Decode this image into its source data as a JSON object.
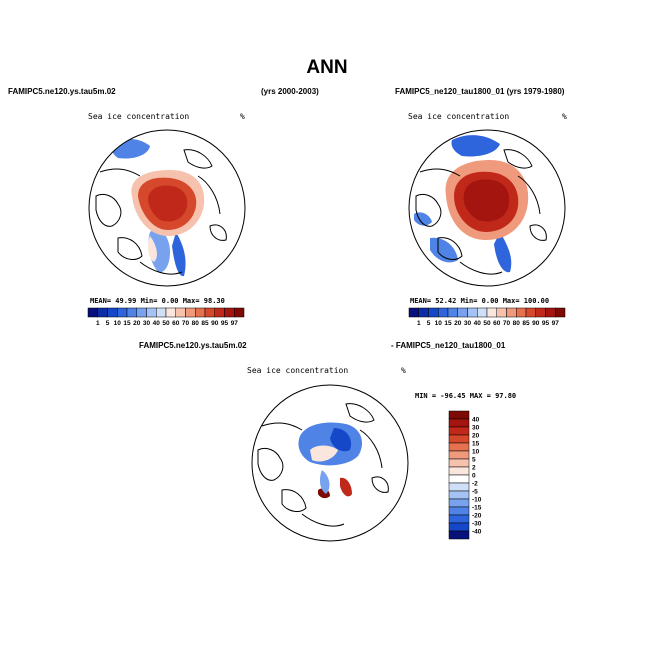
{
  "figure": {
    "title": "ANN",
    "top_left_case": "FAMIPC5.ne120.ys.tau5m.02",
    "top_left_years": "(yrs 2000-2003)",
    "top_right_case": "FAMIPC5_ne120_tau1800_01 (yrs 1979-1980)",
    "bottom_case_a": "FAMIPC5.ne120.ys.tau5m.02",
    "bottom_case_b": "- FAMIPC5_ne120_tau1800_01"
  },
  "panels": {
    "left": {
      "title": "Sea ice concentration",
      "units": "%",
      "stats": "MEAN=  49.99  Min=   0.00  Max=  98.30"
    },
    "right": {
      "title": "Sea ice concentration",
      "units": "%",
      "stats": "MEAN=  52.42  Min=   0.00  Max= 100.00"
    },
    "diff": {
      "title": "Sea ice concentration",
      "units": "%",
      "stats": "MIN = -96.45 MAX =  97.80"
    }
  },
  "chart_data": [
    {
      "type": "heatmap",
      "title": "Sea ice concentration",
      "case": "FAMIPC5.ne120.ys.tau5m.02",
      "years": "(yrs 2000-2003)",
      "units": "%",
      "mean": 49.99,
      "min": 0.0,
      "max": 98.3,
      "colorbar": {
        "labels": [
          "1",
          "5",
          "10",
          "15",
          "20",
          "30",
          "40",
          "50",
          "60",
          "70",
          "80",
          "85",
          "90",
          "95",
          "97"
        ],
        "colors": [
          "#08107a",
          "#0b2ea6",
          "#1548c8",
          "#2f65dc",
          "#4f83e6",
          "#78a2ee",
          "#a4c2f4",
          "#cfdff8",
          "#fbe6dd",
          "#f6c2ad",
          "#ef9a7c",
          "#e5714f",
          "#d6482b",
          "#c0291a",
          "#a3150e",
          "#7e0a06"
        ]
      }
    },
    {
      "type": "heatmap",
      "title": "Sea ice concentration",
      "case": "FAMIPC5_ne120_tau1800_01",
      "years": "(yrs 1979-1980)",
      "units": "%",
      "mean": 52.42,
      "min": 0.0,
      "max": 100.0,
      "colorbar": {
        "labels": [
          "1",
          "5",
          "10",
          "15",
          "20",
          "30",
          "40",
          "50",
          "60",
          "70",
          "80",
          "85",
          "90",
          "95",
          "97"
        ],
        "colors": [
          "#08107a",
          "#0b2ea6",
          "#1548c8",
          "#2f65dc",
          "#4f83e6",
          "#78a2ee",
          "#a4c2f4",
          "#cfdff8",
          "#fbe6dd",
          "#f6c2ad",
          "#ef9a7c",
          "#e5714f",
          "#d6482b",
          "#c0291a",
          "#a3150e",
          "#7e0a06"
        ]
      }
    },
    {
      "type": "heatmap",
      "title": "Sea ice concentration",
      "case": "FAMIPC5.ne120.ys.tau5m.02 - FAMIPC5_ne120_tau1800_01",
      "units": "%",
      "min": -96.45,
      "max": 97.8,
      "colorbar": {
        "labels": [
          "40",
          "30",
          "20",
          "15",
          "10",
          "5",
          "2",
          "0",
          "-2",
          "-5",
          "-10",
          "-15",
          "-20",
          "-30",
          "-40"
        ],
        "colors": [
          "#7e0a06",
          "#a3150e",
          "#c0291a",
          "#d6482b",
          "#e5714f",
          "#ef9a7c",
          "#f6c2ad",
          "#fbe6dd",
          "#ffffff",
          "#cfdff8",
          "#a4c2f4",
          "#78a2ee",
          "#4f83e6",
          "#2f65dc",
          "#1548c8",
          "#08107a"
        ]
      }
    }
  ]
}
